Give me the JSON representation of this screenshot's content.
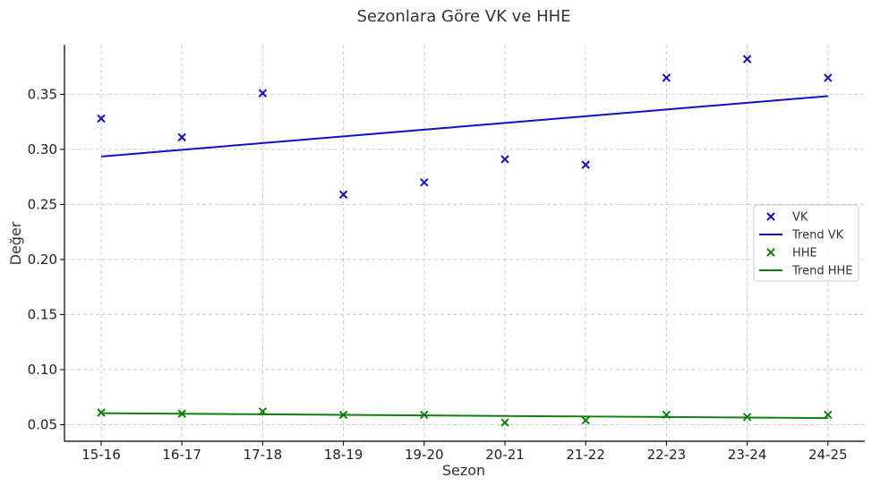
{
  "chart_data": {
    "type": "scatter",
    "title": "Sezonlara Göre VK ve HHE",
    "xlabel": "Sezon",
    "ylabel": "Değer",
    "categories": [
      "15-16",
      "16-17",
      "17-18",
      "18-19",
      "19-20",
      "20-21",
      "21-22",
      "22-23",
      "23-24",
      "24-25"
    ],
    "ylim": [
      0.035,
      0.395
    ],
    "yticks": [
      0.05,
      0.1,
      0.15,
      0.2,
      0.25,
      0.3,
      0.35
    ],
    "ytick_labels": [
      "0.05",
      "0.10",
      "0.15",
      "0.20",
      "0.25",
      "0.30",
      "0.35"
    ],
    "grid": true,
    "legend_position": "right",
    "series": [
      {
        "name": "VK",
        "kind": "scatter",
        "marker": "x",
        "color": "#1010cc",
        "values": [
          0.328,
          0.311,
          0.351,
          0.259,
          0.27,
          0.291,
          0.286,
          0.365,
          0.382,
          0.365
        ]
      },
      {
        "name": "Trend VK",
        "kind": "line",
        "color": "#1010cc",
        "values": [
          0.2935,
          0.2996,
          0.3057,
          0.3118,
          0.3179,
          0.324,
          0.3301,
          0.3362,
          0.3423,
          0.3484
        ]
      },
      {
        "name": "HHE",
        "kind": "scatter",
        "marker": "x",
        "color": "#108010",
        "values": [
          0.061,
          0.06,
          0.062,
          0.059,
          0.059,
          0.052,
          0.054,
          0.059,
          0.057,
          0.059
        ]
      },
      {
        "name": "Trend HHE",
        "kind": "line",
        "color": "#108010",
        "values": [
          0.0605,
          0.06,
          0.0595,
          0.059,
          0.0585,
          0.058,
          0.0575,
          0.057,
          0.0565,
          0.056
        ]
      }
    ]
  }
}
